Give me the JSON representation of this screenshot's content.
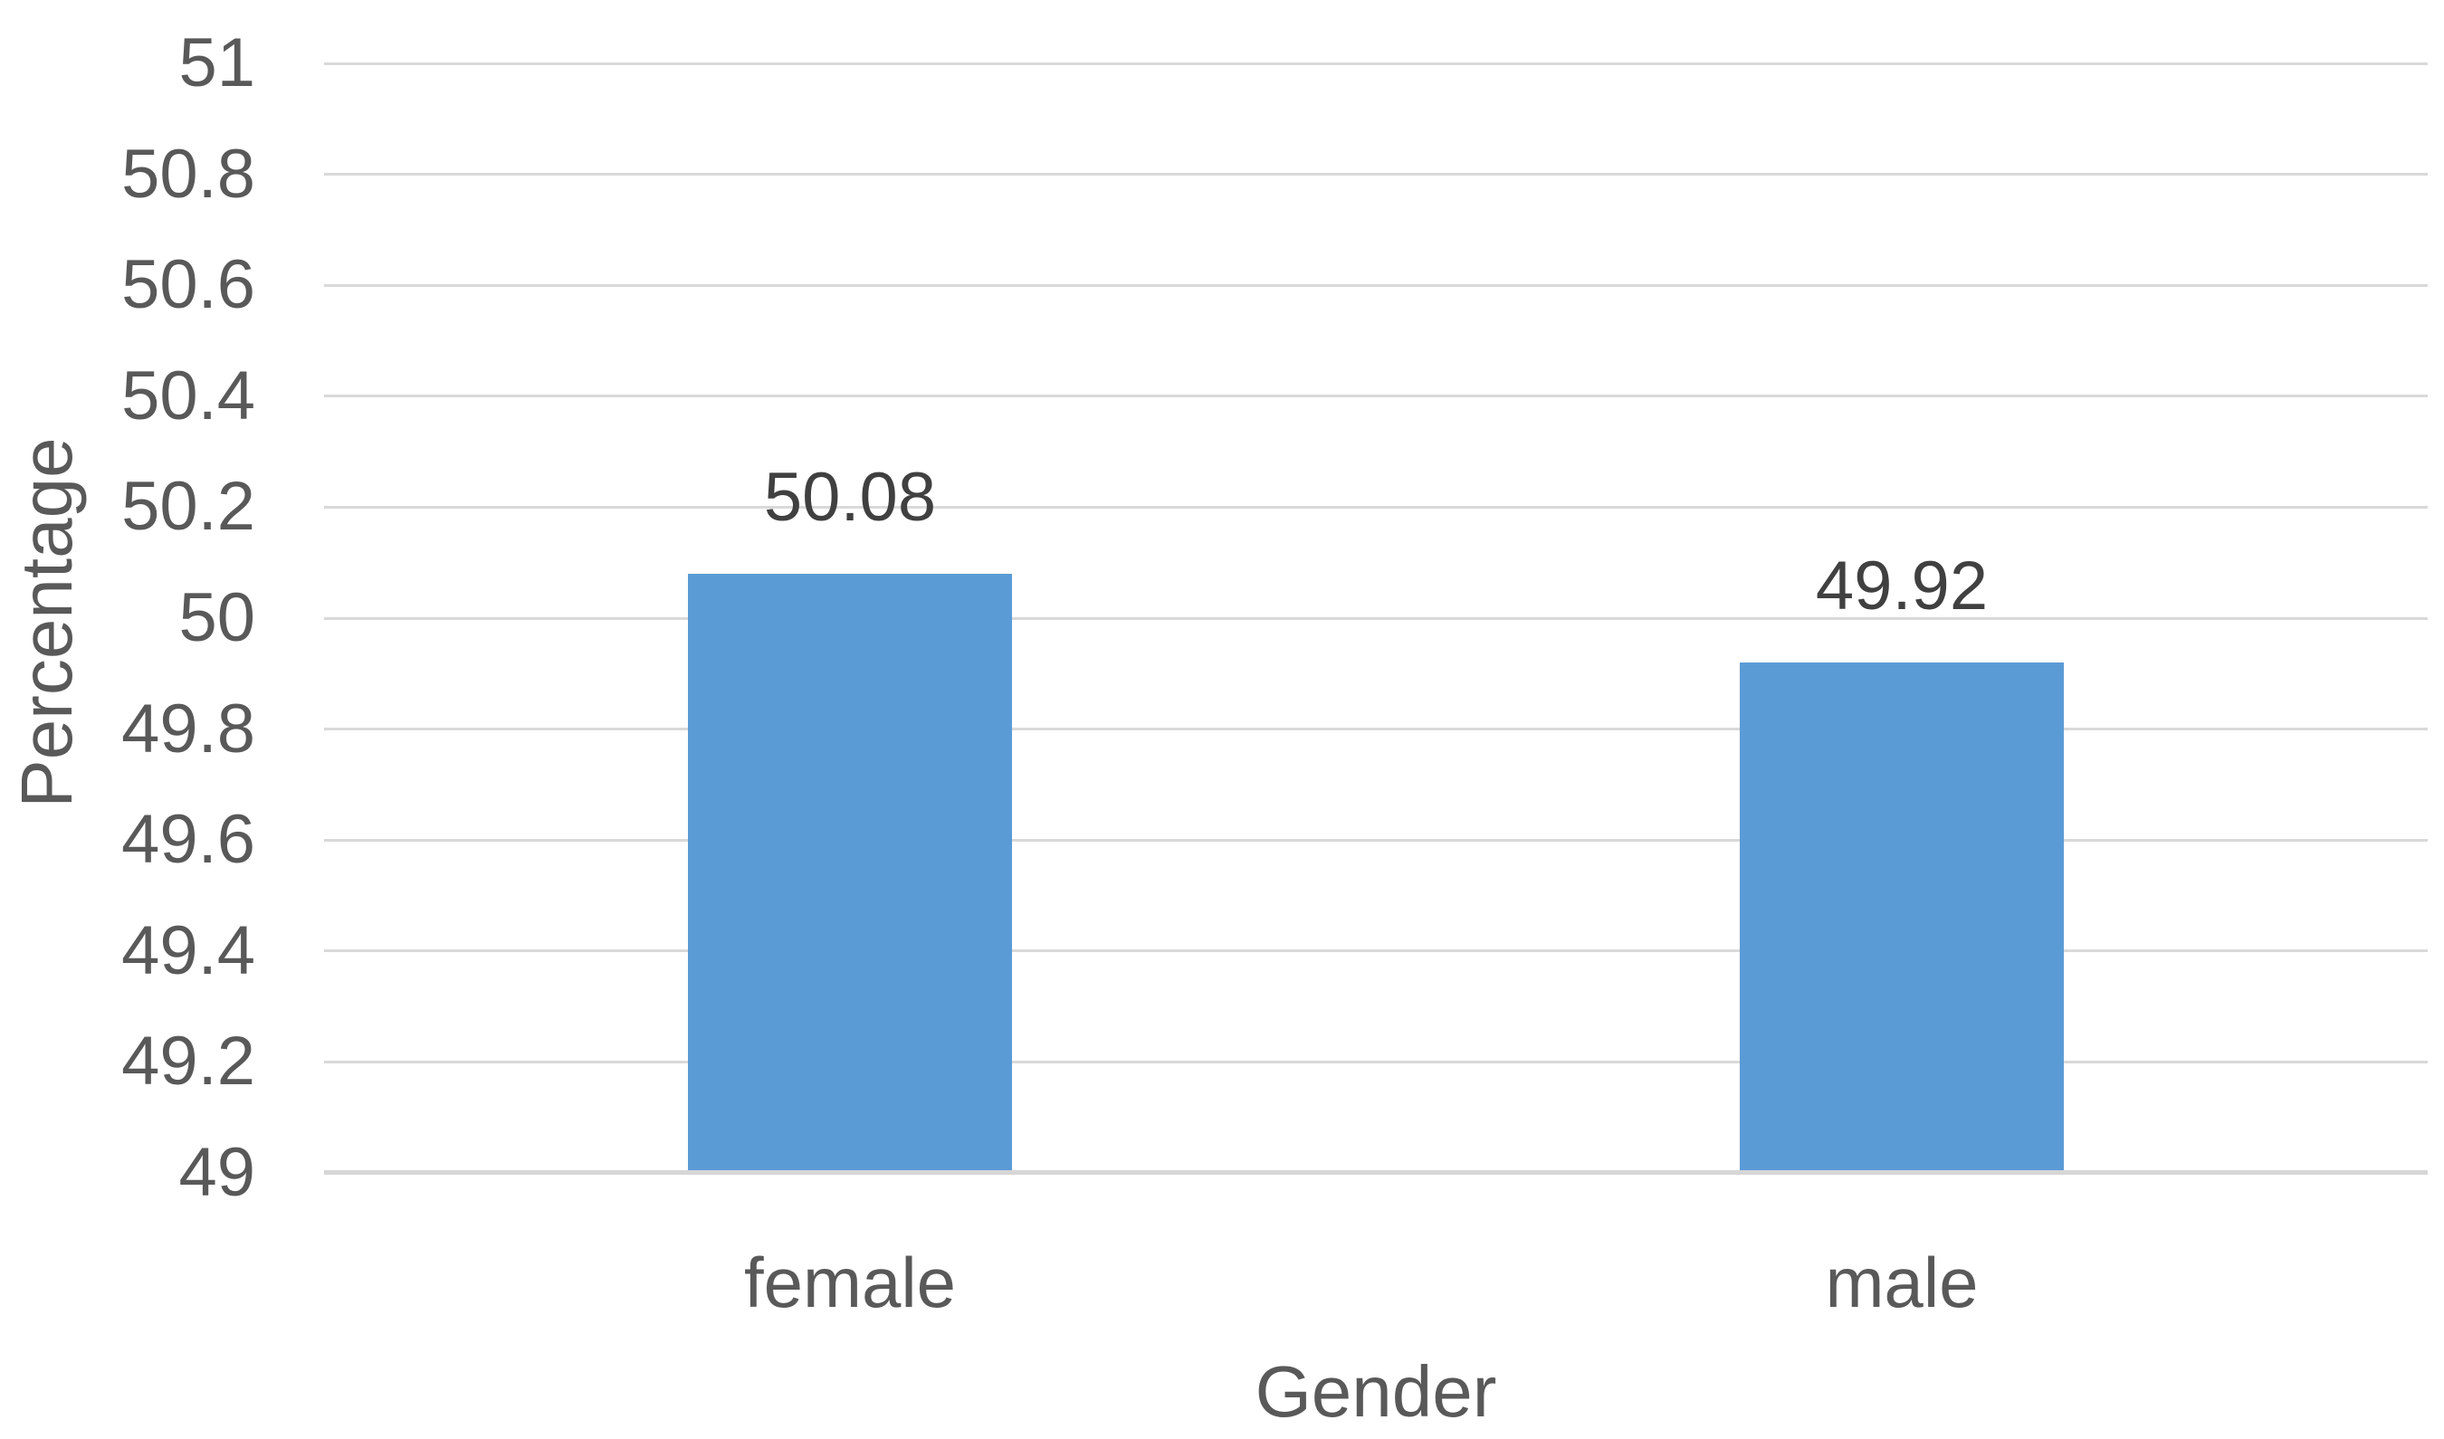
{
  "chart_data": {
    "type": "bar",
    "title": "",
    "categories": [
      "female",
      "male"
    ],
    "values": [
      50.08,
      49.92
    ],
    "data_labels": [
      "50.08",
      "49.92"
    ],
    "xlabel": "Gender",
    "ylabel": "Percentage",
    "ylim": [
      49,
      51
    ],
    "ytick_step": 0.2,
    "yticks": [
      "51",
      "50.8",
      "50.6",
      "50.4",
      "50.2",
      "50",
      "49.8",
      "49.6",
      "49.4",
      "49.2",
      "49"
    ],
    "grid": true,
    "legend": false,
    "colors": {
      "bar_fill": "#5B9BD5",
      "gridline": "#D9D9D9",
      "axis_line": "#D6D6D6",
      "tick_label": "#595959",
      "category_label": "#595959",
      "axis_title": "#595959",
      "data_label": "#404040",
      "background": "#FFFFFF"
    }
  }
}
